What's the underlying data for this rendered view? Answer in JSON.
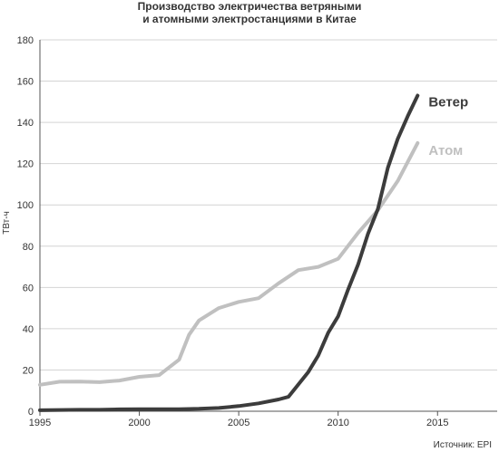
{
  "chart_data": {
    "type": "line",
    "title_lines": [
      "Производство электричества ветряными",
      "и атомными электростанциями в Китае"
    ],
    "ylabel": "ТВт-ч",
    "xlabel": "",
    "xlim": [
      1995,
      2018
    ],
    "ylim": [
      0,
      180
    ],
    "x_ticks": [
      1995,
      2000,
      2005,
      2010,
      2015
    ],
    "y_ticks": [
      0,
      20,
      40,
      60,
      80,
      100,
      120,
      140,
      160,
      180
    ],
    "grid": "horizontal",
    "series": [
      {
        "name": "Ветер",
        "color": "#3c3c3c",
        "points": [
          [
            1995,
            0.5
          ],
          [
            1996,
            0.6
          ],
          [
            1997,
            0.7
          ],
          [
            1998,
            0.7
          ],
          [
            1999,
            0.9
          ],
          [
            2000,
            1.0
          ],
          [
            2001,
            1.0
          ],
          [
            2002,
            1.0
          ],
          [
            2003,
            1.2
          ],
          [
            2004,
            1.6
          ],
          [
            2005,
            2.5
          ],
          [
            2006,
            3.8
          ],
          [
            2007,
            5.7
          ],
          [
            2007.5,
            7
          ],
          [
            2008,
            13
          ],
          [
            2008.5,
            19
          ],
          [
            2009,
            27
          ],
          [
            2009.5,
            38
          ],
          [
            2010,
            46
          ],
          [
            2010.5,
            59
          ],
          [
            2011,
            71
          ],
          [
            2011.5,
            86
          ],
          [
            2012,
            98
          ],
          [
            2012.5,
            118
          ],
          [
            2013,
            132
          ],
          [
            2013.5,
            143
          ],
          [
            2014,
            153
          ]
        ]
      },
      {
        "name": "Атом",
        "color": "#c0c0c0",
        "points": [
          [
            1995,
            12.8
          ],
          [
            1996,
            14.3
          ],
          [
            1997,
            14.4
          ],
          [
            1998,
            14.1
          ],
          [
            1999,
            14.9
          ],
          [
            2000,
            16.7
          ],
          [
            2001,
            17.5
          ],
          [
            2002,
            25
          ],
          [
            2002.5,
            37
          ],
          [
            2003,
            44
          ],
          [
            2004,
            50
          ],
          [
            2005,
            53
          ],
          [
            2006,
            54.8
          ],
          [
            2007,
            62
          ],
          [
            2008,
            68.4
          ],
          [
            2009,
            70
          ],
          [
            2010,
            73.9
          ],
          [
            2011,
            86.4
          ],
          [
            2012,
            97.4
          ],
          [
            2013,
            111.6
          ],
          [
            2014,
            130
          ]
        ]
      }
    ],
    "source": "Источник: EPI"
  }
}
